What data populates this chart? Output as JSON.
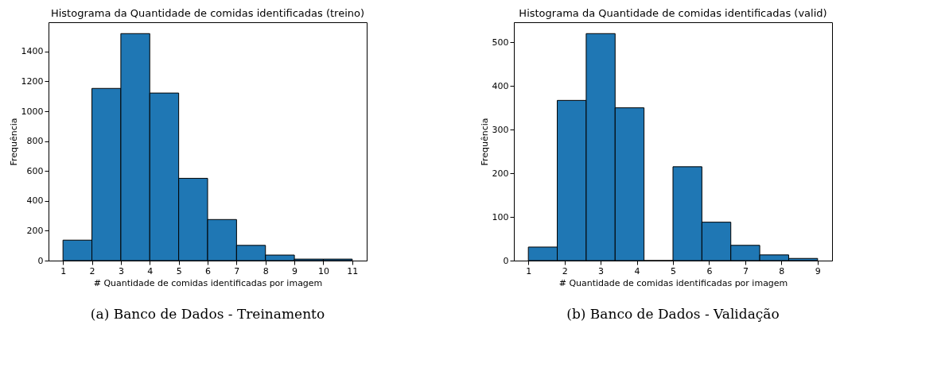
{
  "chart_data": [
    {
      "type": "histogram",
      "title": "Histograma da Quantidade de comidas identificadas (treino)",
      "xlabel": "# Quantidade de comidas identificadas por imagem",
      "ylabel": "Frequência",
      "bins": [
        1,
        2,
        3,
        4,
        5,
        6,
        7,
        8,
        9,
        10,
        11
      ],
      "values": [
        137,
        1153,
        1520,
        1122,
        551,
        275,
        102,
        37,
        10,
        10
      ],
      "color": "#1f77b4",
      "xlim": [
        0.5,
        11.5
      ],
      "ylim": [
        0,
        1596
      ],
      "xticks": [
        1,
        2,
        3,
        4,
        5,
        6,
        7,
        8,
        9,
        10,
        11
      ],
      "yticks": [
        0,
        200,
        400,
        600,
        800,
        1000,
        1200,
        1400
      ],
      "grid": false,
      "annotations": [
        "(a) Banco de Dados - Treinamento"
      ]
    },
    {
      "type": "histogram",
      "title": "Histograma da Quantidade de comidas identificadas (valid)",
      "xlabel": "# Quantidade de comidas identificadas por imagem",
      "ylabel": "Frequência",
      "bins": [
        1,
        1.8,
        2.6,
        3.4,
        4.2,
        5,
        5.8,
        6.6,
        7.4,
        8.2,
        9
      ],
      "values": [
        31,
        367,
        520,
        350,
        0,
        215,
        88,
        35,
        13,
        5
      ],
      "color": "#1f77b4",
      "xlim": [
        0.6,
        9.4
      ],
      "ylim": [
        0,
        546
      ],
      "xticks": [
        1,
        2,
        3,
        4,
        5,
        6,
        7,
        8,
        9
      ],
      "yticks": [
        0,
        100,
        200,
        300,
        400,
        500
      ],
      "grid": false,
      "annotations": [
        "(b) Banco de Dados - Validação"
      ]
    }
  ]
}
